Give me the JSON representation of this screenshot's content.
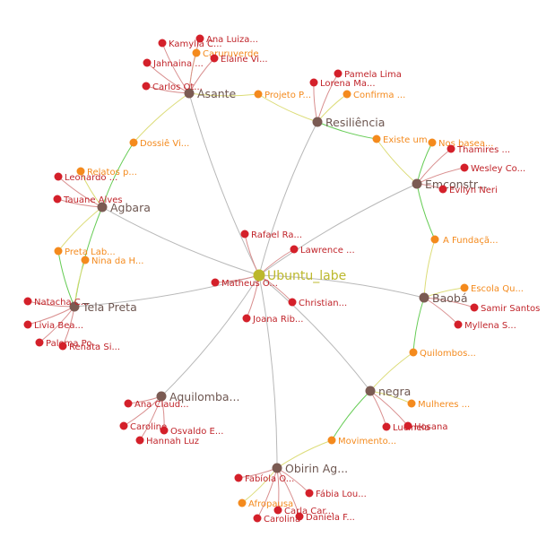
{
  "graph": {
    "colors": {
      "hub": "#bcb82c",
      "hub_label": "#bcb82c",
      "community": "#7b5b53",
      "community_label": "#6e5751",
      "theme": "#f48a1d",
      "theme_label": "#f48a1d",
      "person": "#d4202a",
      "person_label": "#c0242a",
      "edge_gray": "#b8b8b8",
      "edge_green": "#66cc55",
      "edge_yellow": "#dcdc77",
      "edge_red": "#d98f8f"
    },
    "nodes": [
      {
        "id": "ubuntu",
        "label": "Ubuntu_labe",
        "kind": "hub"
      },
      {
        "id": "asante",
        "label": "Asante",
        "kind": "community"
      },
      {
        "id": "resiliencia",
        "label": "Resiliência",
        "kind": "community"
      },
      {
        "id": "emconstr",
        "label": "Emconstr...",
        "kind": "community"
      },
      {
        "id": "agbara",
        "label": "Agbara",
        "kind": "community"
      },
      {
        "id": "telapreta",
        "label": "Tela Preta",
        "kind": "community"
      },
      {
        "id": "baoba",
        "label": "Baobá",
        "kind": "community"
      },
      {
        "id": "aquilomba",
        "label": "Aquilomba...",
        "kind": "community"
      },
      {
        "id": "negra",
        "label": "negra",
        "kind": "community"
      },
      {
        "id": "obirin",
        "label": "Obirin Ag...",
        "kind": "community"
      },
      {
        "id": "projeto",
        "label": "Projeto P...",
        "kind": "theme"
      },
      {
        "id": "dossie",
        "label": "Dossiê Vi...",
        "kind": "theme"
      },
      {
        "id": "existe",
        "label": "Existe um...",
        "kind": "theme"
      },
      {
        "id": "afundacao",
        "label": "A Fundaçã...",
        "kind": "theme"
      },
      {
        "id": "pretalab",
        "label": "Preta Lab...",
        "kind": "theme"
      },
      {
        "id": "quilombos",
        "label": "Quilombos...",
        "kind": "theme"
      },
      {
        "id": "movimento",
        "label": "Movimento...",
        "kind": "theme"
      },
      {
        "id": "caruruverde",
        "label": "Caruruverde",
        "kind": "theme"
      },
      {
        "id": "confirma",
        "label": "Confirma ...",
        "kind": "theme"
      },
      {
        "id": "nosbasea",
        "label": "Nos basea...",
        "kind": "theme"
      },
      {
        "id": "relatos",
        "label": "Relatos p...",
        "kind": "theme"
      },
      {
        "id": "ninadah",
        "label": "Nina da H...",
        "kind": "theme"
      },
      {
        "id": "escolaqu",
        "label": "Escola Qu...",
        "kind": "theme"
      },
      {
        "id": "mulheres",
        "label": "Mulheres ...",
        "kind": "theme"
      },
      {
        "id": "afropausa",
        "label": "Afropausa",
        "kind": "theme"
      },
      {
        "id": "analuiza",
        "label": "Ana Luiza...",
        "kind": "person"
      },
      {
        "id": "kamylla",
        "label": "Kamylla C...",
        "kind": "person"
      },
      {
        "id": "elaine",
        "label": "Elaine Vi...",
        "kind": "person"
      },
      {
        "id": "jahnaina",
        "label": "Jahnaina ...",
        "kind": "person"
      },
      {
        "id": "carlos",
        "label": "Carlos Ot...",
        "kind": "person"
      },
      {
        "id": "pamela",
        "label": "Pamela Lima",
        "kind": "person"
      },
      {
        "id": "lorena",
        "label": "Lorena Ma...",
        "kind": "person"
      },
      {
        "id": "thamires",
        "label": "Thamires ...",
        "kind": "person"
      },
      {
        "id": "wesley",
        "label": "Wesley Co...",
        "kind": "person"
      },
      {
        "id": "evilyn",
        "label": "Evilyn Neri",
        "kind": "person"
      },
      {
        "id": "leonardo",
        "label": "Leonardo ...",
        "kind": "person"
      },
      {
        "id": "tauane",
        "label": "Tauane Alves",
        "kind": "person"
      },
      {
        "id": "rafael",
        "label": "Rafael Ra...",
        "kind": "person"
      },
      {
        "id": "lawrence",
        "label": "Lawrence ...",
        "kind": "person"
      },
      {
        "id": "matheus",
        "label": "Matheus O...",
        "kind": "person"
      },
      {
        "id": "christian",
        "label": "Christian...",
        "kind": "person"
      },
      {
        "id": "joana",
        "label": "Joana Rib...",
        "kind": "person"
      },
      {
        "id": "natacha",
        "label": "Natacha C...",
        "kind": "person"
      },
      {
        "id": "livia",
        "label": "Livia Bea...",
        "kind": "person"
      },
      {
        "id": "paloma",
        "label": "Paloma Po...",
        "kind": "person"
      },
      {
        "id": "renata",
        "label": "Renata Si...",
        "kind": "person"
      },
      {
        "id": "samir",
        "label": "Samir Santos",
        "kind": "person"
      },
      {
        "id": "myllena",
        "label": "Myllena S...",
        "kind": "person"
      },
      {
        "id": "anaclaudia",
        "label": "Ana Claud...",
        "kind": "person"
      },
      {
        "id": "caroline",
        "label": "Caroline",
        "kind": "person"
      },
      {
        "id": "osvaldo",
        "label": "Osvaldo E...",
        "kind": "person"
      },
      {
        "id": "hannah",
        "label": "Hannah Luz",
        "kind": "person"
      },
      {
        "id": "lucineia",
        "label": "Lucineia",
        "kind": "person"
      },
      {
        "id": "hosana",
        "label": "Hosana",
        "kind": "person"
      },
      {
        "id": "fabiola",
        "label": "Fabíola O...",
        "kind": "person"
      },
      {
        "id": "fabialou",
        "label": "Fábia Lou...",
        "kind": "person"
      },
      {
        "id": "carlacar",
        "label": "Carla Car...",
        "kind": "person"
      },
      {
        "id": "daniela",
        "label": "Daniela F...",
        "kind": "person"
      },
      {
        "id": "carolina",
        "label": "Carolina",
        "kind": "person"
      }
    ],
    "edges": [
      {
        "from": "asante",
        "to": "ubuntu",
        "color": "gray"
      },
      {
        "from": "resiliencia",
        "to": "ubuntu",
        "color": "gray"
      },
      {
        "from": "emconstr",
        "to": "ubuntu",
        "color": "gray"
      },
      {
        "from": "agbara",
        "to": "ubuntu",
        "color": "gray"
      },
      {
        "from": "telapreta",
        "to": "ubuntu",
        "color": "gray"
      },
      {
        "from": "baoba",
        "to": "ubuntu",
        "color": "gray"
      },
      {
        "from": "aquilomba",
        "to": "ubuntu",
        "color": "gray"
      },
      {
        "from": "negra",
        "to": "ubuntu",
        "color": "gray"
      },
      {
        "from": "obirin",
        "to": "ubuntu",
        "color": "gray"
      },
      {
        "from": "rafael",
        "to": "ubuntu",
        "color": "red"
      },
      {
        "from": "lawrence",
        "to": "ubuntu",
        "color": "red"
      },
      {
        "from": "matheus",
        "to": "ubuntu",
        "color": "red"
      },
      {
        "from": "christian",
        "to": "ubuntu",
        "color": "red"
      },
      {
        "from": "joana",
        "to": "ubuntu",
        "color": "red"
      },
      {
        "from": "asante",
        "to": "projeto",
        "color": "yellow"
      },
      {
        "from": "projeto",
        "to": "resiliencia",
        "color": "yellow"
      },
      {
        "from": "resiliencia",
        "to": "existe",
        "color": "green"
      },
      {
        "from": "existe",
        "to": "emconstr",
        "color": "yellow"
      },
      {
        "from": "emconstr",
        "to": "afundacao",
        "color": "green"
      },
      {
        "from": "afundacao",
        "to": "baoba",
        "color": "yellow"
      },
      {
        "from": "baoba",
        "to": "quilombos",
        "color": "green"
      },
      {
        "from": "quilombos",
        "to": "negra",
        "color": "yellow"
      },
      {
        "from": "negra",
        "to": "movimento",
        "color": "green"
      },
      {
        "from": "movimento",
        "to": "obirin",
        "color": "yellow"
      },
      {
        "from": "asante",
        "to": "dossie",
        "color": "yellow"
      },
      {
        "from": "dossie",
        "to": "agbara",
        "color": "green"
      },
      {
        "from": "agbara",
        "to": "pretalab",
        "color": "yellow"
      },
      {
        "from": "pretalab",
        "to": "telapreta",
        "color": "green"
      },
      {
        "from": "agbara",
        "to": "telapreta",
        "color": "green"
      },
      {
        "from": "ninadah",
        "to": "telapreta",
        "color": "yellow"
      },
      {
        "from": "relatos",
        "to": "agbara",
        "color": "yellow"
      },
      {
        "from": "nosbasea",
        "to": "emconstr",
        "color": "green"
      },
      {
        "from": "escolaqu",
        "to": "baoba",
        "color": "yellow"
      },
      {
        "from": "mulheres",
        "to": "negra",
        "color": "yellow"
      },
      {
        "from": "confirma",
        "to": "resiliencia",
        "color": "yellow"
      },
      {
        "from": "caruruverde",
        "to": "asante",
        "color": "yellow"
      },
      {
        "from": "afropausa",
        "to": "obirin",
        "color": "yellow"
      },
      {
        "from": "analuiza",
        "to": "asante",
        "color": "red"
      },
      {
        "from": "kamylla",
        "to": "asante",
        "color": "red"
      },
      {
        "from": "elaine",
        "to": "asante",
        "color": "red"
      },
      {
        "from": "jahnaina",
        "to": "asante",
        "color": "red"
      },
      {
        "from": "carlos",
        "to": "asante",
        "color": "red"
      },
      {
        "from": "pamela",
        "to": "resiliencia",
        "color": "red"
      },
      {
        "from": "lorena",
        "to": "resiliencia",
        "color": "red"
      },
      {
        "from": "thamires",
        "to": "emconstr",
        "color": "red"
      },
      {
        "from": "wesley",
        "to": "emconstr",
        "color": "red"
      },
      {
        "from": "evilyn",
        "to": "emconstr",
        "color": "red"
      },
      {
        "from": "leonardo",
        "to": "agbara",
        "color": "red"
      },
      {
        "from": "tauane",
        "to": "agbara",
        "color": "red"
      },
      {
        "from": "natacha",
        "to": "telapreta",
        "color": "red"
      },
      {
        "from": "livia",
        "to": "telapreta",
        "color": "red"
      },
      {
        "from": "paloma",
        "to": "telapreta",
        "color": "red"
      },
      {
        "from": "renata",
        "to": "telapreta",
        "color": "red"
      },
      {
        "from": "samir",
        "to": "baoba",
        "color": "red"
      },
      {
        "from": "myllena",
        "to": "baoba",
        "color": "red"
      },
      {
        "from": "anaclaudia",
        "to": "aquilomba",
        "color": "red"
      },
      {
        "from": "caroline",
        "to": "aquilomba",
        "color": "red"
      },
      {
        "from": "osvaldo",
        "to": "aquilomba",
        "color": "red"
      },
      {
        "from": "hannah",
        "to": "aquilomba",
        "color": "red"
      },
      {
        "from": "lucineia",
        "to": "negra",
        "color": "red"
      },
      {
        "from": "hosana",
        "to": "negra",
        "color": "red"
      },
      {
        "from": "fabiola",
        "to": "obirin",
        "color": "red"
      },
      {
        "from": "fabialou",
        "to": "obirin",
        "color": "red"
      },
      {
        "from": "carlacar",
        "to": "obirin",
        "color": "red"
      },
      {
        "from": "daniela",
        "to": "obirin",
        "color": "red"
      },
      {
        "from": "carolina",
        "to": "obirin",
        "color": "red"
      }
    ]
  }
}
